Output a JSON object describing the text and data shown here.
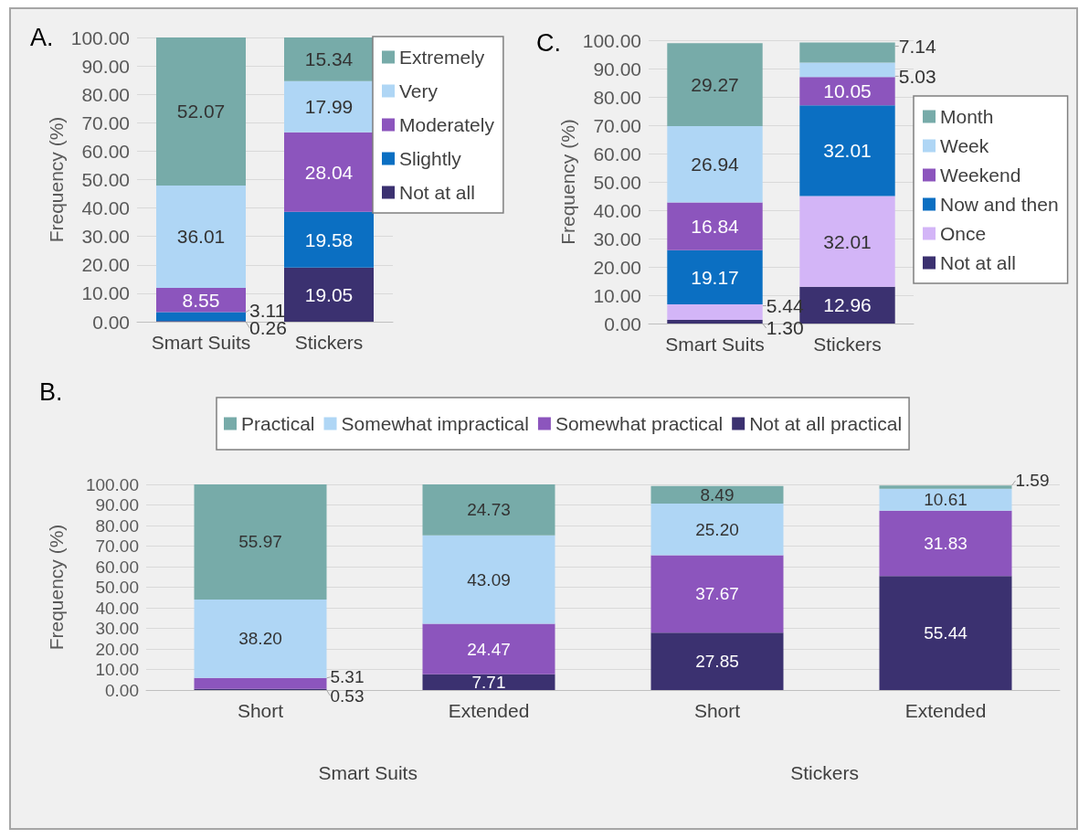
{
  "chart_data": [
    {
      "type": "bar",
      "title": "A.",
      "ylabel": "Frequency (%)",
      "categories": [
        "Smart Suits",
        "Stickers"
      ],
      "stacked": true,
      "grid": "y",
      "legend": "top right",
      "ylim": [
        0,
        100
      ],
      "yticks": [
        {
          "value": 0,
          "label": "0.00"
        },
        {
          "value": 10,
          "label": "10.00"
        },
        {
          "value": 20,
          "label": "20.00"
        },
        {
          "value": 30,
          "label": "30.00"
        },
        {
          "value": 40,
          "label": "40.00"
        },
        {
          "value": 50,
          "label": "50.00"
        },
        {
          "value": 60,
          "label": "60.00"
        },
        {
          "value": 70,
          "label": "70.00"
        },
        {
          "value": 80,
          "label": "80.00"
        },
        {
          "value": 90,
          "label": "90.00"
        },
        {
          "value": 100,
          "label": "100.00"
        }
      ],
      "series": [
        {
          "name": "Not at all",
          "color": "#3b3170",
          "values": [
            0.26,
            19.05
          ],
          "value_labels": [
            "0.26",
            "19.05"
          ]
        },
        {
          "name": "Slightly",
          "color": "#0b6fc2",
          "values": [
            3.11,
            19.58
          ],
          "value_labels": [
            "3.11",
            "19.58"
          ]
        },
        {
          "name": "Moderately",
          "color": "#8c55bd",
          "values": [
            8.55,
            28.04
          ],
          "value_labels": [
            "8.55",
            "28.04"
          ]
        },
        {
          "name": "Very",
          "color": "#afd6f5",
          "values": [
            36.01,
            17.99
          ],
          "value_labels": [
            "36.01",
            "17.99"
          ]
        },
        {
          "name": "Extremely",
          "color": "#77aba9",
          "values": [
            52.07,
            15.34
          ],
          "value_labels": [
            "52.07",
            "15.34"
          ]
        }
      ]
    },
    {
      "type": "bar",
      "title": "C.",
      "ylabel": "Frequency (%)",
      "categories": [
        "Smart Suits",
        "Stickers"
      ],
      "stacked": true,
      "grid": "y",
      "legend": "right",
      "ylim": [
        0,
        100
      ],
      "yticks": [
        {
          "value": 0,
          "label": "0.00"
        },
        {
          "value": 10,
          "label": "10.00"
        },
        {
          "value": 20,
          "label": "20.00"
        },
        {
          "value": 30,
          "label": "30.00"
        },
        {
          "value": 40,
          "label": "40.00"
        },
        {
          "value": 50,
          "label": "50.00"
        },
        {
          "value": 60,
          "label": "60.00"
        },
        {
          "value": 70,
          "label": "70.00"
        },
        {
          "value": 80,
          "label": "80.00"
        },
        {
          "value": 90,
          "label": "90.00"
        },
        {
          "value": 100,
          "label": "100.00"
        }
      ],
      "series": [
        {
          "name": "Not at all",
          "color": "#3b3170",
          "values": [
            1.3,
            12.96
          ],
          "value_labels": [
            "1.30",
            "12.96"
          ]
        },
        {
          "name": "Once",
          "color": "#d3b5f7",
          "values": [
            5.44,
            32.01
          ],
          "value_labels": [
            "5.44",
            "32.01"
          ]
        },
        {
          "name": "Now and then",
          "color": "#0b6fc2",
          "values": [
            19.17,
            32.01
          ],
          "value_labels": [
            "19.17",
            "32.01"
          ]
        },
        {
          "name": "Weekend",
          "color": "#8c55bd",
          "values": [
            16.84,
            10.05
          ],
          "value_labels": [
            "16.84",
            "10.05"
          ]
        },
        {
          "name": "Week",
          "color": "#afd6f5",
          "values": [
            26.94,
            5.03
          ],
          "value_labels": [
            "26.94",
            "5.03"
          ]
        },
        {
          "name": "Month",
          "color": "#77aba9",
          "values": [
            29.27,
            7.14
          ],
          "value_labels": [
            "29.27",
            "7.14"
          ]
        }
      ]
    },
    {
      "type": "bar",
      "title": "B.",
      "ylabel": "Frequency (%)",
      "categories": [
        "Short",
        "Extended",
        "Short",
        "Extended"
      ],
      "annotations": [
        "Smart Suits",
        "Stickers"
      ],
      "stacked": true,
      "grid": "y",
      "legend": "top",
      "ylim": [
        0,
        100
      ],
      "yticks": [
        {
          "value": 0,
          "label": "0.00"
        },
        {
          "value": 10,
          "label": "10.00"
        },
        {
          "value": 20,
          "label": "20.00"
        },
        {
          "value": 30,
          "label": "30.00"
        },
        {
          "value": 40,
          "label": "40.00"
        },
        {
          "value": 50,
          "label": "50.00"
        },
        {
          "value": 60,
          "label": "60.00"
        },
        {
          "value": 70,
          "label": "70.00"
        },
        {
          "value": 80,
          "label": "80.00"
        },
        {
          "value": 90,
          "label": "90.00"
        },
        {
          "value": 100,
          "label": "100.00"
        }
      ],
      "series": [
        {
          "name": "Not at all practical",
          "color": "#3b3170",
          "values": [
            0.53,
            7.71,
            27.85,
            55.44
          ],
          "value_labels": [
            "0.53",
            "7.71",
            "27.85",
            "55.44"
          ]
        },
        {
          "name": "Somewhat practical",
          "color": "#8c55bd",
          "values": [
            5.31,
            24.47,
            37.67,
            31.83
          ],
          "value_labels": [
            "5.31",
            "24.47",
            "37.67",
            "31.83"
          ]
        },
        {
          "name": "Somewhat impractical",
          "color": "#afd6f5",
          "values": [
            38.2,
            43.09,
            25.2,
            10.61
          ],
          "value_labels": [
            "38.20",
            "43.09",
            "25.20",
            "10.61"
          ]
        },
        {
          "name": "Practical",
          "color": "#77aba9",
          "values": [
            55.97,
            24.73,
            8.49,
            1.59
          ],
          "value_labels": [
            "55.97",
            "24.73",
            "8.49",
            "1.59"
          ]
        }
      ]
    }
  ]
}
